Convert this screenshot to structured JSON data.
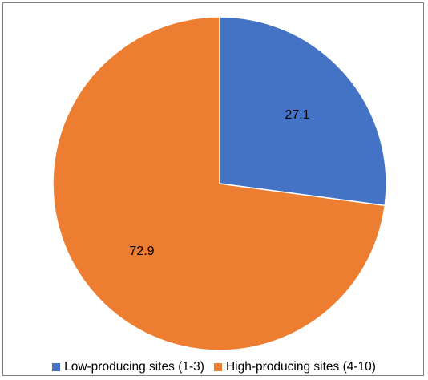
{
  "chart_data": {
    "type": "pie",
    "title": "",
    "categories": [
      "Low-producing sites (1-3)",
      "High-producing sites (4-10)"
    ],
    "values": [
      27.1,
      72.9
    ],
    "value_labels": [
      "27.1",
      "72.9"
    ],
    "colors": [
      "#4472c4",
      "#ed7d31"
    ],
    "start_angle_deg": 0,
    "direction": "clockwise",
    "legend_position": "bottom",
    "grid": false
  }
}
